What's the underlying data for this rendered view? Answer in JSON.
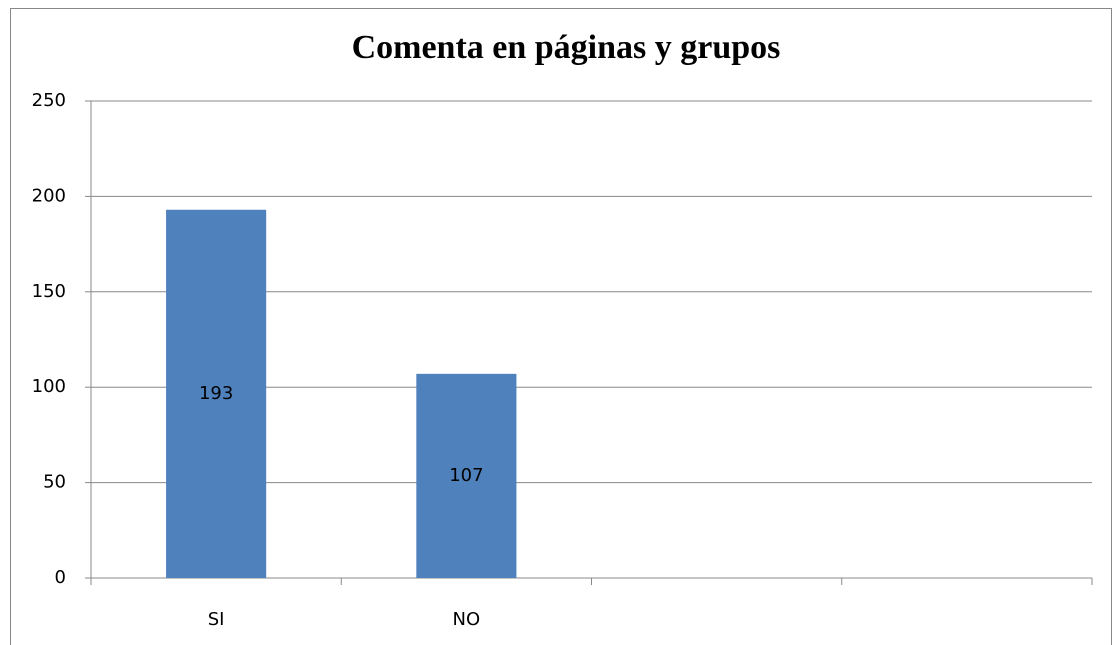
{
  "chart_data": {
    "type": "bar",
    "title": "Comenta en páginas y grupos",
    "categories": [
      "SI",
      "NO",
      null,
      null
    ],
    "values": [
      193,
      107,
      null,
      null
    ],
    "color": "#4f81bd",
    "ylim": [
      0,
      250
    ],
    "yticks": [
      0,
      50,
      100,
      150,
      200,
      250
    ],
    "grid": true
  }
}
